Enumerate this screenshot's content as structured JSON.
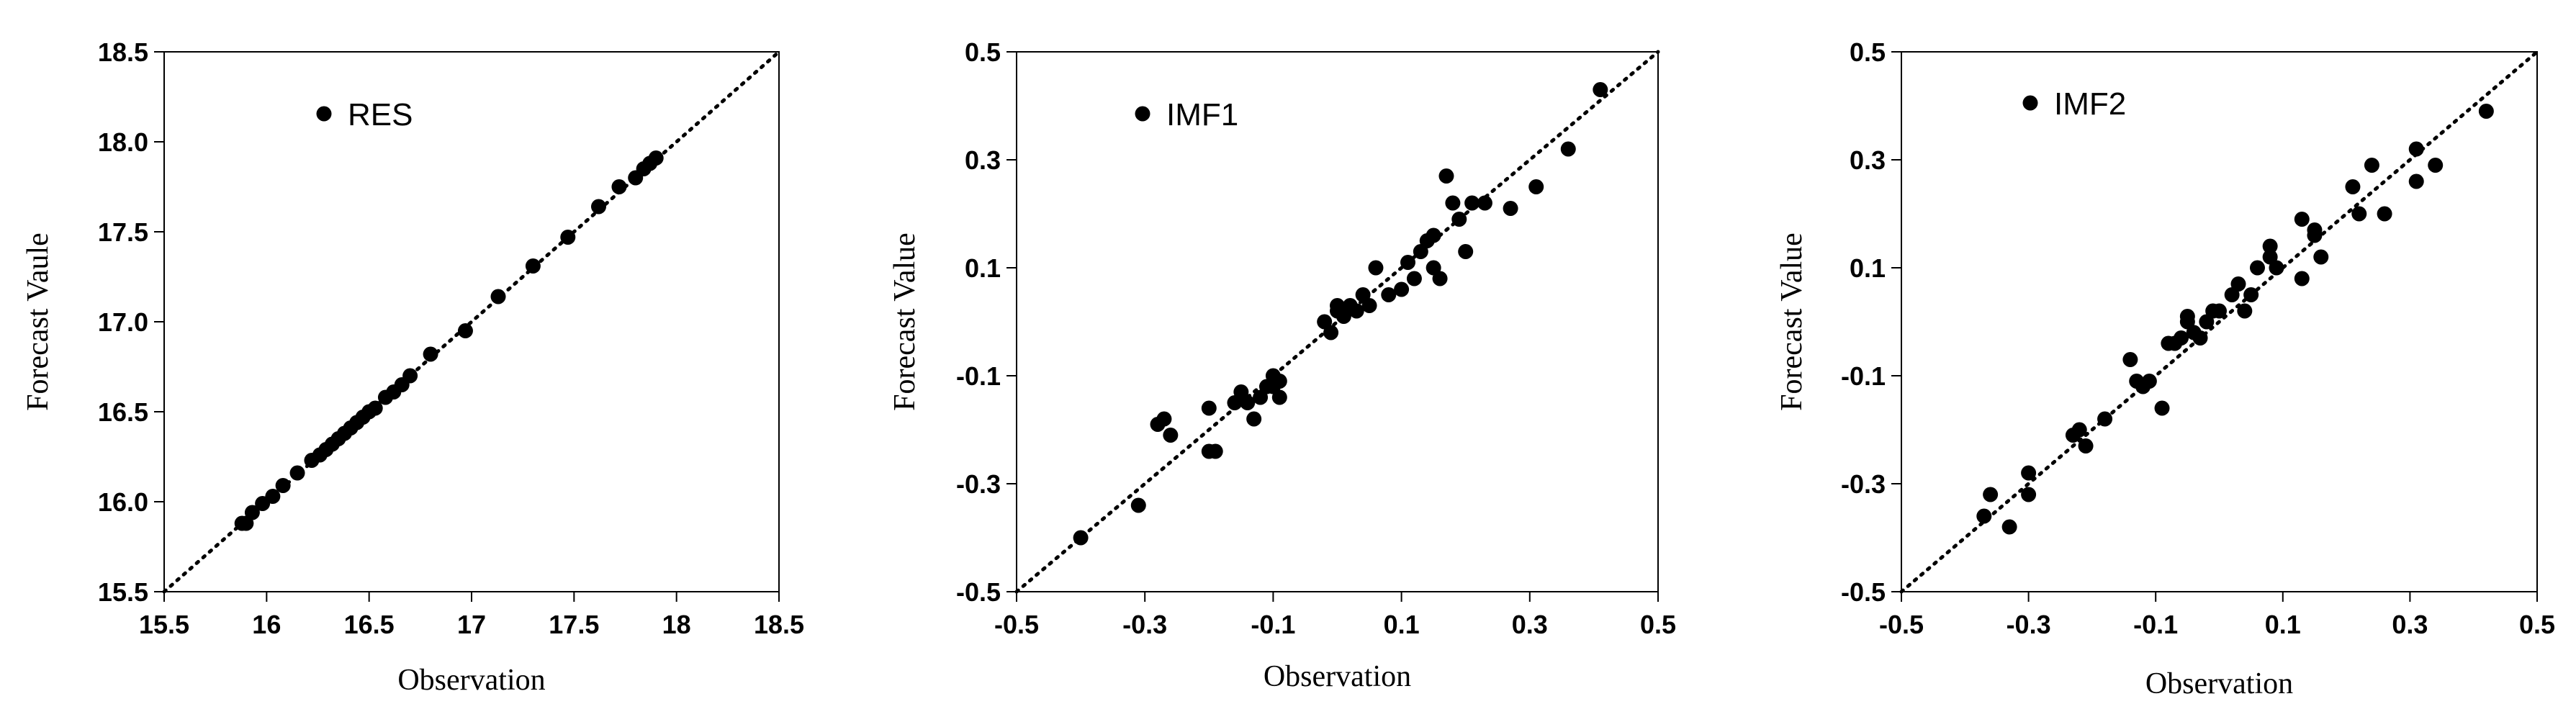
{
  "chart_data": [
    {
      "type": "scatter",
      "xlabel": "Observation",
      "ylabel": "Forecast Vaule",
      "xlim": [
        15.5,
        18.5
      ],
      "ylim": [
        15.5,
        18.5
      ],
      "xticks": [
        "15.5",
        "16",
        "16.5",
        "17",
        "17.5",
        "18",
        "18.5"
      ],
      "yticks": [
        "15.5",
        "16.0",
        "16.5",
        "17.0",
        "17.5",
        "18.0",
        "18.5"
      ],
      "xtick_values": [
        15.5,
        16,
        16.5,
        17,
        17.5,
        18,
        18.5
      ],
      "ytick_values": [
        15.5,
        16.0,
        16.5,
        17.0,
        17.5,
        18.0,
        18.5
      ],
      "reference_line": "y = x, dotted",
      "legend_position": "top-left",
      "series": [
        {
          "name": "RES",
          "color": "#000000",
          "x": [
            15.88,
            15.9,
            15.93,
            15.98,
            16.03,
            16.08,
            16.15,
            16.22,
            16.26,
            16.29,
            16.32,
            16.35,
            16.38,
            16.41,
            16.44,
            16.47,
            16.5,
            16.53,
            16.58,
            16.62,
            16.66,
            16.7,
            16.8,
            16.97,
            17.13,
            17.3,
            17.47,
            17.62,
            17.72,
            17.8,
            17.84,
            17.87,
            17.9
          ],
          "y": [
            15.88,
            15.88,
            15.94,
            15.99,
            16.03,
            16.09,
            16.16,
            16.23,
            16.26,
            16.29,
            16.32,
            16.35,
            16.38,
            16.41,
            16.44,
            16.47,
            16.5,
            16.52,
            16.58,
            16.61,
            16.65,
            16.7,
            16.82,
            16.95,
            17.14,
            17.31,
            17.47,
            17.64,
            17.75,
            17.8,
            17.85,
            17.88,
            17.91
          ]
        }
      ]
    },
    {
      "type": "scatter",
      "xlabel": "Observation",
      "ylabel": "Forecast Value",
      "xlim": [
        -0.5,
        0.5
      ],
      "ylim": [
        -0.5,
        0.5
      ],
      "xticks": [
        "-0.5",
        "-0.3",
        "-0.1",
        "0.1",
        "0.3",
        "0.5"
      ],
      "yticks": [
        "-0.5",
        "-0.3",
        "-0.1",
        "0.1",
        "0.3",
        "0.5"
      ],
      "xtick_values": [
        -0.5,
        -0.3,
        -0.1,
        0.1,
        0.3,
        0.5
      ],
      "ytick_values": [
        -0.5,
        -0.3,
        -0.1,
        0.1,
        0.3,
        0.5
      ],
      "reference_line": "y = x, dotted",
      "legend_position": "top-left",
      "series": [
        {
          "name": "IMF1",
          "color": "#000000",
          "x": [
            -0.4,
            -0.31,
            -0.28,
            -0.27,
            -0.26,
            -0.2,
            -0.2,
            -0.19,
            -0.16,
            -0.15,
            -0.14,
            -0.13,
            -0.12,
            -0.11,
            -0.1,
            -0.1,
            -0.09,
            -0.09,
            -0.02,
            -0.01,
            0.0,
            0.0,
            0.01,
            0.02,
            0.03,
            0.04,
            0.05,
            0.06,
            0.08,
            0.1,
            0.11,
            0.12,
            0.13,
            0.14,
            0.15,
            0.15,
            0.16,
            0.17,
            0.18,
            0.19,
            0.2,
            0.21,
            0.23,
            0.27,
            0.31,
            0.36,
            0.41
          ],
          "y": [
            -0.4,
            -0.34,
            -0.19,
            -0.18,
            -0.21,
            -0.16,
            -0.24,
            -0.24,
            -0.15,
            -0.13,
            -0.15,
            -0.18,
            -0.14,
            -0.12,
            -0.1,
            -0.12,
            -0.14,
            -0.11,
            0.0,
            -0.02,
            0.03,
            0.02,
            0.01,
            0.03,
            0.02,
            0.05,
            0.03,
            0.1,
            0.05,
            0.06,
            0.11,
            0.08,
            0.13,
            0.15,
            0.1,
            0.16,
            0.08,
            0.27,
            0.22,
            0.19,
            0.13,
            0.22,
            0.22,
            0.21,
            0.25,
            0.32,
            0.43
          ]
        }
      ]
    },
    {
      "type": "scatter",
      "xlabel": "Observation",
      "ylabel": "Forecast Value",
      "xlim": [
        -0.5,
        0.5
      ],
      "ylim": [
        -0.5,
        0.5
      ],
      "xticks": [
        "-0.5",
        "-0.3",
        "-0.1",
        "0.1",
        "0.3",
        "0.5"
      ],
      "yticks": [
        "-0.5",
        "-0.3",
        "-0.1",
        "0.1",
        "0.3",
        "0.5"
      ],
      "xtick_values": [
        -0.5,
        -0.3,
        -0.1,
        0.1,
        0.3,
        0.5
      ],
      "ytick_values": [
        -0.5,
        -0.3,
        -0.1,
        0.1,
        0.3,
        0.5
      ],
      "reference_line": "y = x, dotted",
      "legend_position": "top-left",
      "series": [
        {
          "name": "IMF2",
          "color": "#000000",
          "x": [
            -0.37,
            -0.36,
            -0.33,
            -0.3,
            -0.3,
            -0.23,
            -0.22,
            -0.21,
            -0.18,
            -0.14,
            -0.13,
            -0.12,
            -0.11,
            -0.09,
            -0.08,
            -0.07,
            -0.06,
            -0.05,
            -0.05,
            -0.04,
            -0.03,
            -0.02,
            -0.01,
            0.0,
            0.02,
            0.03,
            0.04,
            0.05,
            0.06,
            0.08,
            0.08,
            0.09,
            0.13,
            0.13,
            0.15,
            0.15,
            0.16,
            0.21,
            0.22,
            0.24,
            0.26,
            0.31,
            0.31,
            0.34,
            0.42
          ],
          "y": [
            -0.36,
            -0.32,
            -0.38,
            -0.28,
            -0.32,
            -0.21,
            -0.2,
            -0.23,
            -0.18,
            -0.07,
            -0.11,
            -0.12,
            -0.11,
            -0.16,
            -0.04,
            -0.04,
            -0.03,
            0.0,
            0.01,
            -0.02,
            -0.03,
            0.0,
            0.02,
            0.02,
            0.05,
            0.07,
            0.02,
            0.05,
            0.1,
            0.12,
            0.14,
            0.1,
            0.19,
            0.08,
            0.16,
            0.17,
            0.12,
            0.25,
            0.2,
            0.29,
            0.2,
            0.32,
            0.26,
            0.29,
            0.39
          ]
        }
      ]
    }
  ]
}
